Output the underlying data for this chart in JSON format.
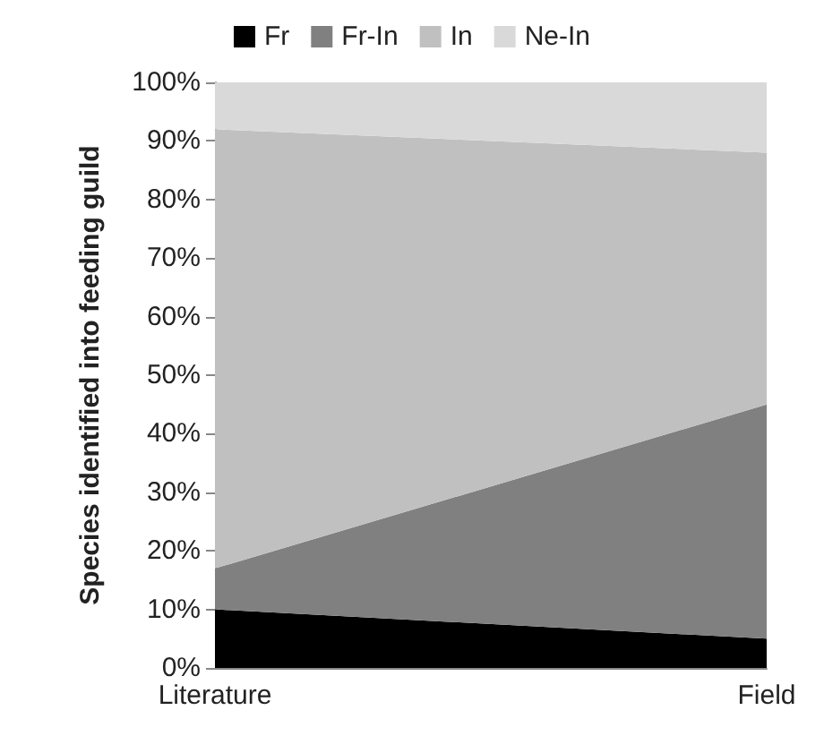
{
  "chart_data": {
    "type": "area",
    "stacked": true,
    "ylabel": "Species identified into feeding guild",
    "categories": [
      "Literature",
      "Field"
    ],
    "series": [
      {
        "name": "Fr",
        "color": "#000000",
        "values": [
          10,
          5
        ]
      },
      {
        "name": "Fr-In",
        "color": "#808080",
        "values": [
          7,
          40
        ]
      },
      {
        "name": "In",
        "color": "#c0c0c0",
        "values": [
          75,
          43
        ]
      },
      {
        "name": "Ne-In",
        "color": "#d9d9d9",
        "values": [
          8,
          12
        ]
      }
    ],
    "ylim": [
      0,
      100
    ],
    "yticks": [
      {
        "value": 0,
        "label": "0%"
      },
      {
        "value": 10,
        "label": "10%"
      },
      {
        "value": 20,
        "label": "20%"
      },
      {
        "value": 30,
        "label": "30%"
      },
      {
        "value": 40,
        "label": "40%"
      },
      {
        "value": 50,
        "label": "50%"
      },
      {
        "value": 60,
        "label": "60%"
      },
      {
        "value": 70,
        "label": "70%"
      },
      {
        "value": 80,
        "label": "80%"
      },
      {
        "value": 90,
        "label": "90%"
      },
      {
        "value": 100,
        "label": "100%"
      }
    ],
    "grid": false,
    "legend": "top"
  }
}
